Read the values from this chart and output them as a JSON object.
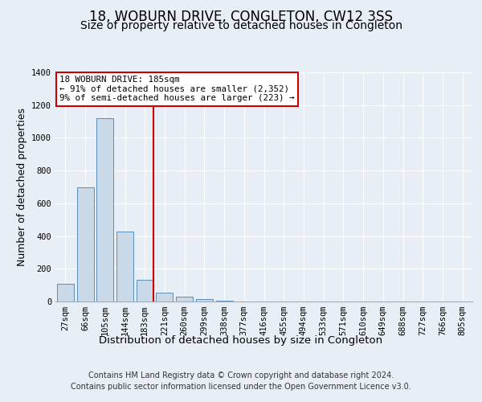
{
  "title": "18, WOBURN DRIVE, CONGLETON, CW12 3SS",
  "subtitle": "Size of property relative to detached houses in Congleton",
  "xlabel": "Distribution of detached houses by size in Congleton",
  "ylabel": "Number of detached properties",
  "footer_line1": "Contains HM Land Registry data © Crown copyright and database right 2024.",
  "footer_line2": "Contains public sector information licensed under the Open Government Licence v3.0.",
  "categories": [
    "27sqm",
    "66sqm",
    "105sqm",
    "144sqm",
    "183sqm",
    "221sqm",
    "260sqm",
    "299sqm",
    "338sqm",
    "377sqm",
    "416sqm",
    "455sqm",
    "494sqm",
    "533sqm",
    "571sqm",
    "610sqm",
    "649sqm",
    "688sqm",
    "727sqm",
    "766sqm",
    "805sqm"
  ],
  "values": [
    110,
    700,
    1120,
    425,
    135,
    52,
    30,
    15,
    5,
    2,
    1,
    0,
    0,
    0,
    0,
    0,
    0,
    0,
    0,
    0,
    0
  ],
  "bar_color": "#c9d9e8",
  "bar_edge_color": "#5b8db8",
  "highlight_bar_index": 4,
  "highlight_line_color": "#cc0000",
  "annotation_text": "18 WOBURN DRIVE: 185sqm\n← 91% of detached houses are smaller (2,352)\n9% of semi-detached houses are larger (223) →",
  "annotation_box_color": "#cc0000",
  "ylim": [
    0,
    1400
  ],
  "yticks": [
    0,
    200,
    400,
    600,
    800,
    1000,
    1200,
    1400
  ],
  "background_color": "#e8eef5",
  "plot_background_color": "#e8eef5",
  "grid_color": "#ffffff",
  "title_fontsize": 12,
  "subtitle_fontsize": 10,
  "axis_label_fontsize": 9,
  "tick_fontsize": 7.5,
  "footer_fontsize": 7
}
